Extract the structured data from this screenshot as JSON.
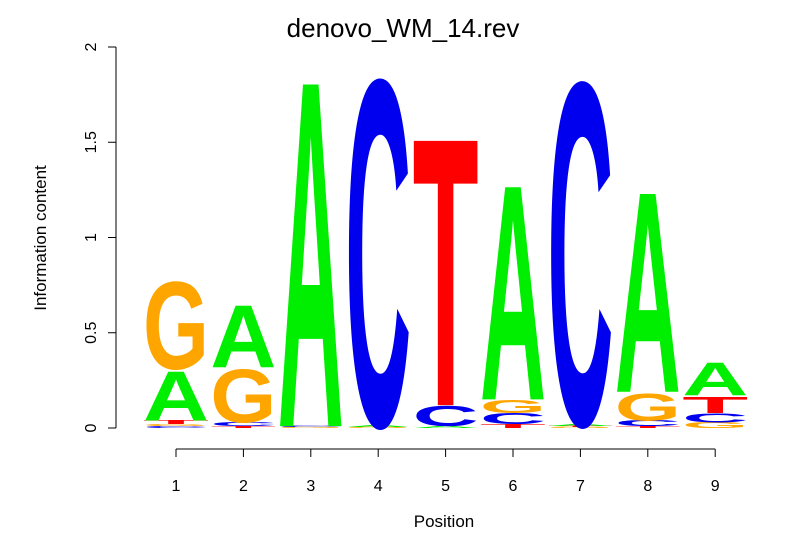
{
  "chart_data": {
    "type": "sequence-logo",
    "title": "denovo_WM_14.rev",
    "xlabel": "Position",
    "ylabel": "Information content",
    "ylim": [
      0,
      2
    ],
    "y_ticks": [
      "0",
      "0.5",
      "1",
      "1.5",
      "2"
    ],
    "x_ticks": [
      "1",
      "2",
      "3",
      "4",
      "5",
      "6",
      "7",
      "8",
      "9"
    ],
    "grid": false,
    "colors": {
      "A": "#00ee00",
      "C": "#0000ee",
      "G": "#ffa500",
      "T": "#ff0000"
    },
    "positions": [
      {
        "pos": "1",
        "stack": [
          {
            "base": "C",
            "height": 0.01
          },
          {
            "base": "G",
            "height": 0.01
          },
          {
            "base": "T",
            "height": 0.02
          },
          {
            "base": "A",
            "height": 0.27
          },
          {
            "base": "G",
            "height": 0.48
          }
        ]
      },
      {
        "pos": "2",
        "stack": [
          {
            "base": "T",
            "height": 0.01
          },
          {
            "base": "C",
            "height": 0.02
          },
          {
            "base": "G",
            "height": 0.29
          },
          {
            "base": "A",
            "height": 0.34
          }
        ]
      },
      {
        "pos": "3",
        "stack": [
          {
            "base": "G",
            "height": 0.005
          },
          {
            "base": "C",
            "height": 0.005
          },
          {
            "base": "A",
            "height": 1.9
          }
        ]
      },
      {
        "pos": "4",
        "stack": [
          {
            "base": "G",
            "height": 0.005
          },
          {
            "base": "A",
            "height": 0.01
          },
          {
            "base": "C",
            "height": 1.9
          }
        ]
      },
      {
        "pos": "5",
        "stack": [
          {
            "base": "A",
            "height": 0.01
          },
          {
            "base": "C",
            "height": 0.11
          },
          {
            "base": "T",
            "height": 1.47
          }
        ]
      },
      {
        "pos": "6",
        "stack": [
          {
            "base": "T",
            "height": 0.02
          },
          {
            "base": "C",
            "height": 0.06
          },
          {
            "base": "G",
            "height": 0.07
          },
          {
            "base": "A",
            "height": 1.18
          }
        ]
      },
      {
        "pos": "7",
        "stack": [
          {
            "base": "G",
            "height": 0.005
          },
          {
            "base": "T",
            "height": 0.005
          },
          {
            "base": "A",
            "height": 0.01
          },
          {
            "base": "C",
            "height": 1.88
          }
        ]
      },
      {
        "pos": "8",
        "stack": [
          {
            "base": "T",
            "height": 0.01
          },
          {
            "base": "C",
            "height": 0.03
          },
          {
            "base": "G",
            "height": 0.15
          },
          {
            "base": "A",
            "height": 1.1
          }
        ]
      },
      {
        "pos": "9",
        "stack": [
          {
            "base": "G",
            "height": 0.03
          },
          {
            "base": "C",
            "height": 0.05
          },
          {
            "base": "T",
            "height": 0.09
          },
          {
            "base": "A",
            "height": 0.18
          }
        ]
      }
    ]
  }
}
